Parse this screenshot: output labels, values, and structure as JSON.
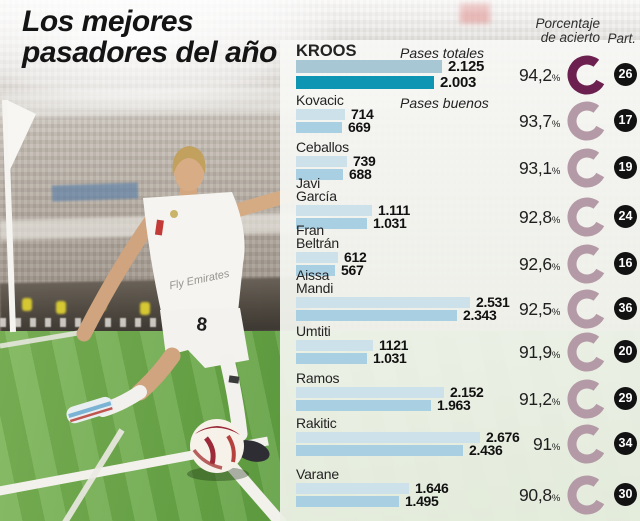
{
  "page": {
    "title_line1": "Los mejores",
    "title_line2": "pasadores del año"
  },
  "headers": {
    "accuracy_line1": "Porcentaje",
    "accuracy_line2": "de acierto",
    "participation": "Part."
  },
  "legend": {
    "total": "Pases totales",
    "good": "Pases buenos"
  },
  "photo": {
    "player_shirt_number": "8",
    "shirt_sponsor": "Fly Emirates"
  },
  "colors": {
    "total_bar": "#cde1ea",
    "good_bar": "#a8cfe2",
    "kroos_total_bar": "#a7c7d4",
    "kroos_good_bar": "#0f95b4",
    "donut": "#b49aa6",
    "kroos_donut": "#6b2050",
    "badge_bg": "#121212",
    "badge_text": "#ffffff",
    "pitch_green": "#5d9a3e",
    "accent_red": "#c23b38"
  },
  "chart_data": {
    "type": "bar",
    "orientation": "horizontal",
    "series": [
      "Pases totales",
      "Pases buenos"
    ],
    "x_max": 2676,
    "players": [
      {
        "name_lines": [
          "KROOS"
        ],
        "highlight": true,
        "total": 2125,
        "total_display": "2.125",
        "good": 2003,
        "good_display": "2.003",
        "accuracy_pct": 94.2,
        "accuracy_display": "94,2",
        "participations": 26
      },
      {
        "name_lines": [
          "Kovacic"
        ],
        "highlight": false,
        "total": 714,
        "total_display": "714",
        "good": 669,
        "good_display": "669",
        "accuracy_pct": 93.7,
        "accuracy_display": "93,7",
        "participations": 17
      },
      {
        "name_lines": [
          "Ceballos"
        ],
        "highlight": false,
        "total": 739,
        "total_display": "739",
        "good": 688,
        "good_display": "688",
        "accuracy_pct": 93.1,
        "accuracy_display": "93,1",
        "participations": 19
      },
      {
        "name_lines": [
          "Javi",
          "García"
        ],
        "highlight": false,
        "total": 1111,
        "total_display": "1.111",
        "good": 1031,
        "good_display": "1.031",
        "accuracy_pct": 92.8,
        "accuracy_display": "92,8",
        "participations": 24
      },
      {
        "name_lines": [
          "Fran",
          "Beltrán"
        ],
        "highlight": false,
        "total": 612,
        "total_display": "612",
        "good": 567,
        "good_display": "567",
        "accuracy_pct": 92.6,
        "accuracy_display": "92,6",
        "participations": 16
      },
      {
        "name_lines": [
          "Aissa",
          "Mandi"
        ],
        "highlight": false,
        "total": 2531,
        "total_display": "2.531",
        "good": 2343,
        "good_display": "2.343",
        "accuracy_pct": 92.5,
        "accuracy_display": "92,5",
        "participations": 36
      },
      {
        "name_lines": [
          "Umtiti"
        ],
        "highlight": false,
        "total": 1121,
        "total_display": "1121",
        "good": 1031,
        "good_display": "1.031",
        "accuracy_pct": 91.9,
        "accuracy_display": "91,9",
        "participations": 20
      },
      {
        "name_lines": [
          "Ramos"
        ],
        "highlight": false,
        "total": 2152,
        "total_display": "2.152",
        "good": 1963,
        "good_display": "1.963",
        "accuracy_pct": 91.2,
        "accuracy_display": "91,2",
        "participations": 29
      },
      {
        "name_lines": [
          "Rakitic"
        ],
        "highlight": false,
        "total": 2676,
        "total_display": "2.676",
        "good": 2436,
        "good_display": "2.436",
        "accuracy_pct": 91.0,
        "accuracy_display": "91",
        "participations": 34
      },
      {
        "name_lines": [
          "Varane"
        ],
        "highlight": false,
        "total": 1646,
        "total_display": "1.646",
        "good": 1495,
        "good_display": "1.495",
        "accuracy_pct": 90.8,
        "accuracy_display": "90,8",
        "participations": 30
      }
    ]
  }
}
